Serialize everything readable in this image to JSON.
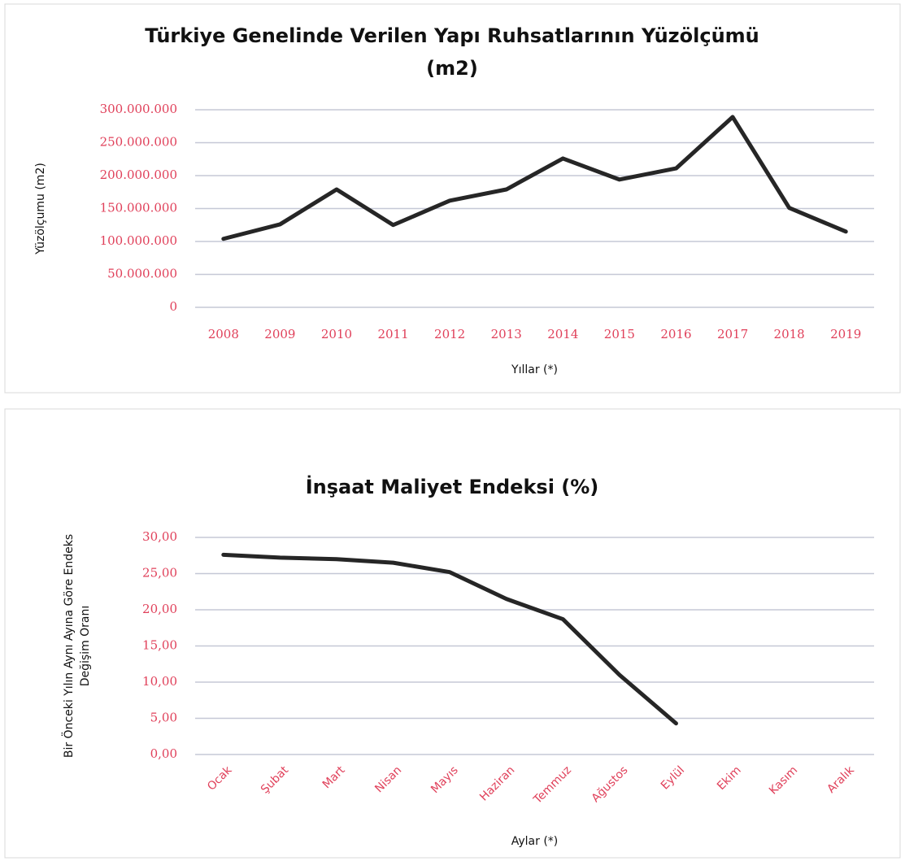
{
  "chart_data": [
    {
      "type": "line",
      "title": [
        "Türkiye Genelinde Verilen Yapı Ruhsatlarının Yüzölçümü",
        "(m2)"
      ],
      "ylabel": [
        "Yüzölçumu (m2)"
      ],
      "xlabel": "Yıllar (*)",
      "categories": [
        "2008",
        "2009",
        "2010",
        "2011",
        "2012",
        "2013",
        "2014",
        "2015",
        "2016",
        "2017",
        "2018",
        "2019"
      ],
      "series": [
        {
          "name": "Yüzölçümü",
          "color": "#262626",
          "values": [
            104000000,
            126000000,
            179000000,
            125000000,
            162000000,
            179000000,
            226000000,
            194000000,
            211000000,
            289000000,
            151000000,
            115000000
          ]
        }
      ],
      "ylim": [
        0,
        300000000
      ],
      "yticks": [
        0,
        {
          "value": 50000000,
          "label": "50.000.000"
        },
        {
          "value": 100000000,
          "label": "100.000.000"
        },
        {
          "value": 150000000,
          "label": "150.000.000"
        },
        {
          "value": 200000000,
          "label": "200.000.000"
        },
        {
          "value": 250000000,
          "label": "250.000.000"
        },
        {
          "value": 300000000,
          "label": "300.000.000"
        }
      ],
      "grid": true,
      "rotate_xticks": false
    },
    {
      "type": "line",
      "title": [
        "İnşaat Maliyet Endeksi (%)"
      ],
      "ylabel": [
        "Bir Önceki Yılın Aynı Ayına Göre Endeks",
        "Değişim Oranı"
      ],
      "xlabel": "Aylar (*)",
      "categories": [
        "Ocak",
        "Şubat",
        "Mart",
        "Nisan",
        "Mayıs",
        "Haziran",
        "Temmuz",
        "Ağustos",
        "Eylül",
        "Ekim",
        "Kasım",
        "Aralık"
      ],
      "series": [
        {
          "name": "Endeks",
          "color": "#262626",
          "values": [
            27.6,
            27.2,
            27.0,
            26.5,
            25.2,
            21.5,
            18.7,
            11.0,
            4.3,
            null,
            null,
            null
          ]
        }
      ],
      "ylim": [
        0,
        30
      ],
      "yticks": [
        {
          "value": 0,
          "label": "0,00"
        },
        {
          "value": 5,
          "label": "5,00"
        },
        {
          "value": 10,
          "label": "10,00"
        },
        {
          "value": 15,
          "label": "15,00"
        },
        {
          "value": 20,
          "label": "20,00"
        },
        {
          "value": 25,
          "label": "25,00"
        },
        {
          "value": 30,
          "label": "30,00"
        }
      ],
      "grid": true,
      "rotate_xticks": true
    }
  ]
}
